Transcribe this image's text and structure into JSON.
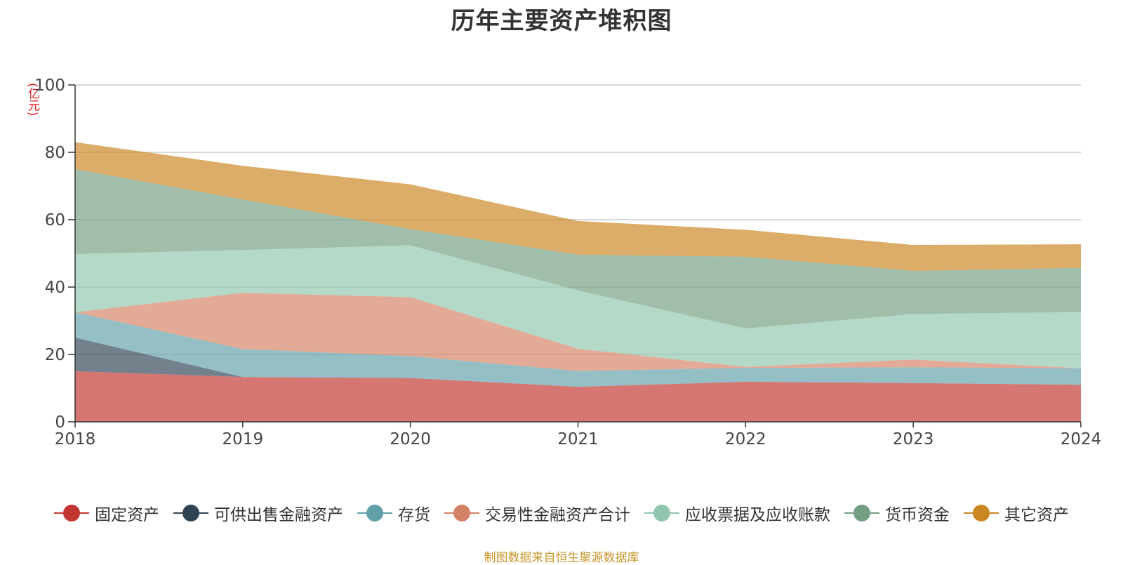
{
  "chart_data": {
    "type": "area",
    "stacked": true,
    "title": "历年主要资产堆积图",
    "unit": "(亿元)",
    "categories": [
      "2018",
      "2019",
      "2020",
      "2021",
      "2022",
      "2023",
      "2024"
    ],
    "ylim": [
      0,
      100
    ],
    "yticks": [
      0,
      20,
      40,
      60,
      80,
      100
    ],
    "grid": true,
    "legend_position": "bottom",
    "series": [
      {
        "name": "固定资产",
        "color": "#c23531",
        "values": [
          15.0,
          13.3,
          13.0,
          10.4,
          11.9,
          11.5,
          11.0
        ]
      },
      {
        "name": "可供出售金融资产",
        "color": "#2f4554",
        "values": [
          10.0,
          0,
          0,
          0,
          0,
          0,
          0
        ]
      },
      {
        "name": "存货",
        "color": "#61a0a8",
        "values": [
          7.5,
          8.3,
          6.5,
          4.7,
          4.1,
          4.7,
          4.9
        ]
      },
      {
        "name": "交易性金融资产合计",
        "color": "#d48265",
        "values": [
          0,
          16.7,
          17.5,
          6.6,
          0.3,
          2.3,
          0
        ]
      },
      {
        "name": "应收票据及应收账款",
        "color": "#91c7ae",
        "values": [
          17.3,
          12.7,
          15.4,
          17.3,
          11.4,
          13.5,
          16.7
        ]
      },
      {
        "name": "货币资金",
        "color": "#749f83",
        "values": [
          25.2,
          15.0,
          4.8,
          10.6,
          21.3,
          12.8,
          13.1
        ]
      },
      {
        "name": "其它资产",
        "color": "#ca8622",
        "values": [
          8.0,
          10.0,
          13.3,
          10.0,
          8.0,
          7.7,
          7.0
        ]
      }
    ]
  },
  "source_note": "制图数据来自恒生聚源数据库"
}
